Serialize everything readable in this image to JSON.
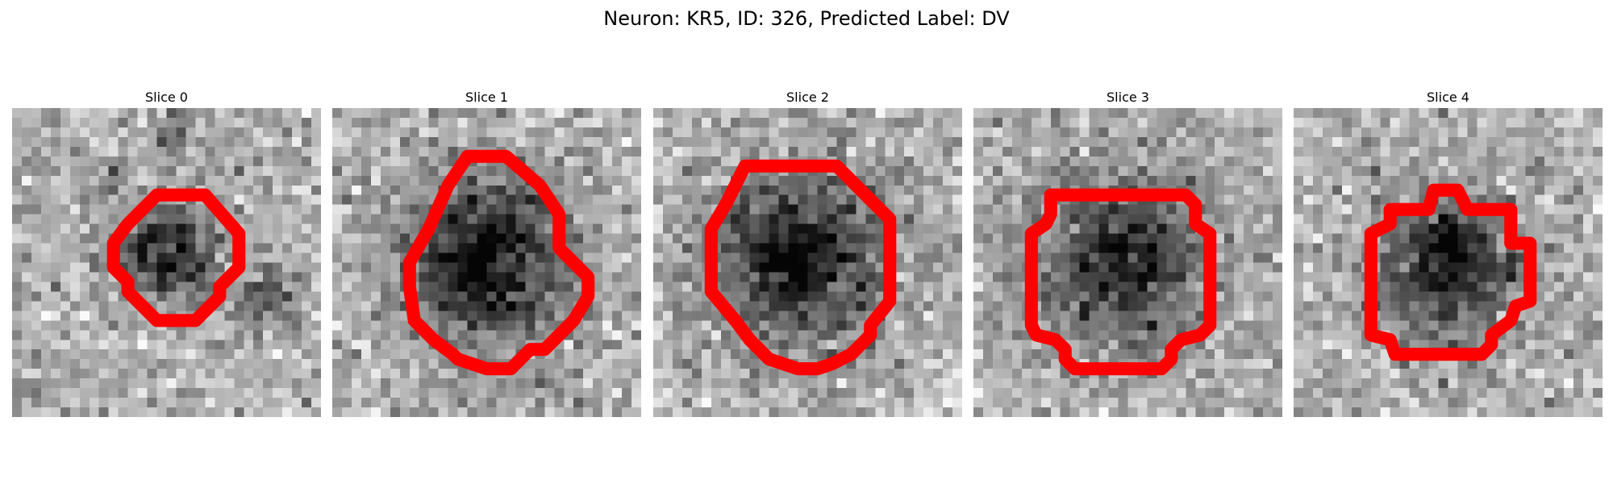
{
  "figure": {
    "title": "Neuron: KR5, ID: 326, Predicted Label: DV"
  },
  "panels": [
    {
      "title": "Slice 0"
    },
    {
      "title": "Slice 1"
    },
    {
      "title": "Slice 2"
    },
    {
      "title": "Slice 3"
    },
    {
      "title": "Slice 4"
    }
  ],
  "colors": {
    "contour": "#ff0000",
    "colormap": "gray"
  }
}
